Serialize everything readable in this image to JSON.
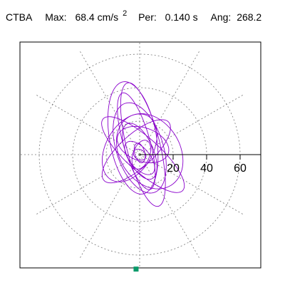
{
  "header": {
    "station": "CTBA",
    "max_label": "Max:",
    "max_value": "68.4 cm/s",
    "max_unit_superscript": "2",
    "period_label": "Per:",
    "period_value": "0.140 s",
    "angle_label": "Ang:",
    "angle_value": "268.2"
  },
  "chart_data": {
    "type": "polar-hodogram",
    "title": "CTBA  Max: 68.4 cm/s2  Per: 0.140 s  Ang: 268.2",
    "radial_ticks": [
      20,
      40,
      60
    ],
    "tick_labels": [
      "20",
      "40",
      "60"
    ],
    "rings": [
      20,
      40,
      60
    ],
    "spokes_deg": [
      0,
      30,
      60,
      90,
      120,
      150,
      180,
      210,
      240,
      270,
      300,
      330
    ],
    "grid": true,
    "grid_style": "dotted",
    "peak": {
      "amplitude": 68.4,
      "angle": 268.2
    },
    "trace_color": "#8a00cc",
    "marker_color": "#0a9a6a",
    "grid_color": "#777777"
  }
}
